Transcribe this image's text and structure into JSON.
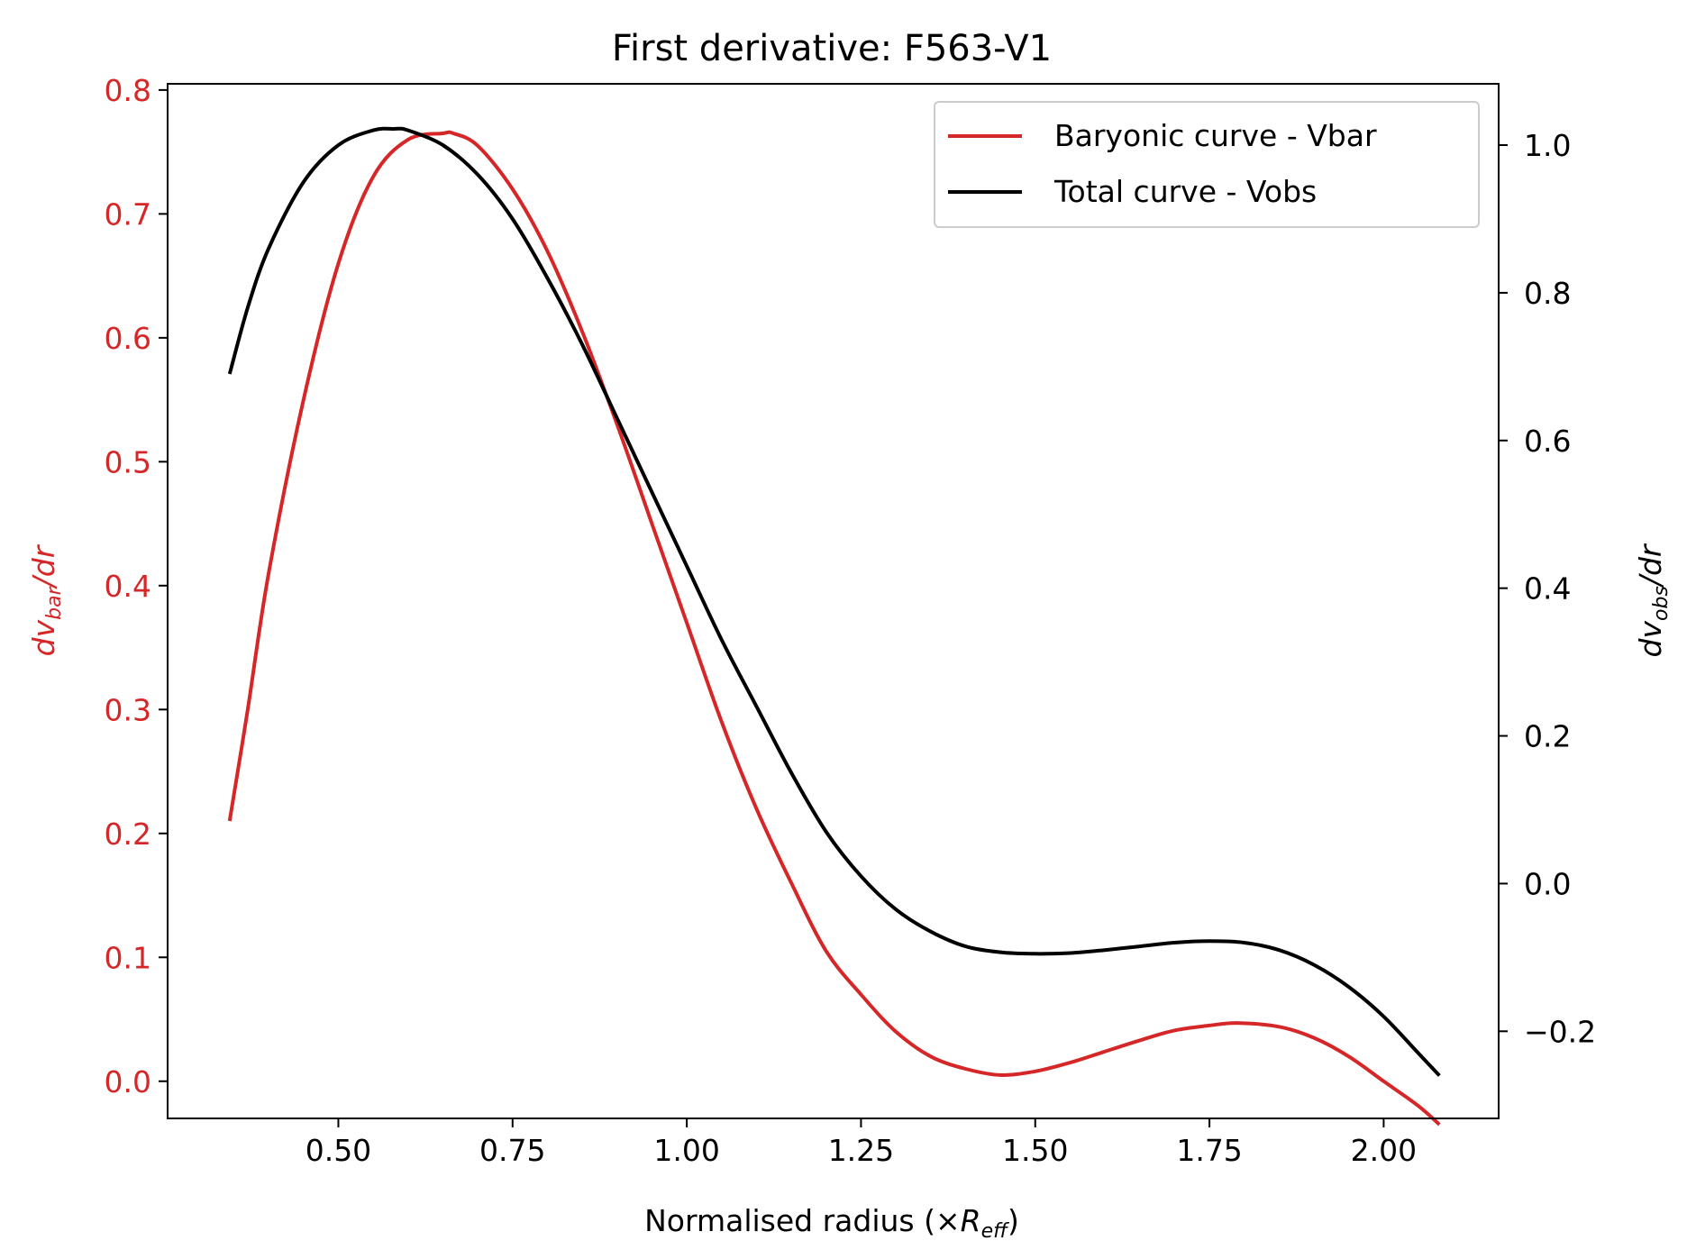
{
  "chart_data": {
    "type": "line",
    "title": "First derivative: F563-V1",
    "xlabel": {
      "main": "Normalised radius (×",
      "var": "R",
      "sub": "eff",
      "close": ")"
    },
    "ylabel_left": {
      "pre": "dv",
      "sub": "bar",
      "post": "/dr",
      "color": "#d62728"
    },
    "ylabel_right": {
      "pre": "dv",
      "sub": "obs",
      "post": "/dr",
      "color": "#000000"
    },
    "xlim": [
      0.255,
      2.165
    ],
    "ylim_left": [
      -0.03,
      0.805
    ],
    "ylim_right": [
      -0.318,
      1.083
    ],
    "x_ticks": [
      0.5,
      0.75,
      1.0,
      1.25,
      1.5,
      1.75,
      2.0
    ],
    "x_tick_labels": [
      "0.50",
      "0.75",
      "1.00",
      "1.25",
      "1.50",
      "1.75",
      "2.00"
    ],
    "y_left_ticks": [
      0.0,
      0.1,
      0.2,
      0.3,
      0.4,
      0.5,
      0.6,
      0.7,
      0.8
    ],
    "y_left_tick_labels": [
      "0.0",
      "0.1",
      "0.2",
      "0.3",
      "0.4",
      "0.5",
      "0.6",
      "0.7",
      "0.8"
    ],
    "y_right_ticks": [
      -0.2,
      0.0,
      0.2,
      0.4,
      0.6,
      0.8,
      1.0
    ],
    "y_right_tick_labels": [
      "−0.2",
      "0.0",
      "0.2",
      "0.4",
      "0.6",
      "0.8",
      "1.0"
    ],
    "grid": false,
    "legend_position": "upper right",
    "series": [
      {
        "name": "Baryonic curve - Vbar",
        "axis": "left",
        "color": "#d62728",
        "x": [
          0.344,
          0.37,
          0.4,
          0.45,
          0.5,
          0.55,
          0.6,
          0.65,
          0.665,
          0.7,
          0.75,
          0.8,
          0.85,
          0.9,
          0.95,
          1.0,
          1.05,
          1.1,
          1.15,
          1.2,
          1.25,
          1.3,
          1.35,
          1.4,
          1.45,
          1.5,
          1.55,
          1.6,
          1.65,
          1.7,
          1.75,
          1.79,
          1.85,
          1.9,
          1.95,
          2.0,
          2.05,
          2.08
        ],
        "y": [
          0.21,
          0.3,
          0.41,
          0.55,
          0.66,
          0.73,
          0.76,
          0.765,
          0.765,
          0.755,
          0.72,
          0.67,
          0.605,
          0.53,
          0.45,
          0.37,
          0.29,
          0.22,
          0.16,
          0.105,
          0.07,
          0.04,
          0.02,
          0.01,
          0.005,
          0.008,
          0.015,
          0.024,
          0.033,
          0.041,
          0.045,
          0.047,
          0.044,
          0.035,
          0.02,
          0.0,
          -0.02,
          -0.035
        ]
      },
      {
        "name": "Total curve - Vobs",
        "axis": "right",
        "color": "#000000",
        "x": [
          0.344,
          0.37,
          0.4,
          0.45,
          0.5,
          0.55,
          0.58,
          0.6,
          0.65,
          0.7,
          0.75,
          0.8,
          0.85,
          0.9,
          0.95,
          1.0,
          1.05,
          1.1,
          1.15,
          1.2,
          1.25,
          1.3,
          1.35,
          1.4,
          1.45,
          1.5,
          1.55,
          1.6,
          1.65,
          1.7,
          1.75,
          1.8,
          1.85,
          1.9,
          1.95,
          2.0,
          2.05,
          2.08
        ],
        "y": [
          0.69,
          0.78,
          0.86,
          0.95,
          1.0,
          1.02,
          1.022,
          1.02,
          1.0,
          0.96,
          0.9,
          0.82,
          0.73,
          0.63,
          0.53,
          0.43,
          0.33,
          0.24,
          0.15,
          0.07,
          0.01,
          -0.035,
          -0.065,
          -0.085,
          -0.093,
          -0.095,
          -0.094,
          -0.09,
          -0.085,
          -0.08,
          -0.078,
          -0.08,
          -0.09,
          -0.11,
          -0.14,
          -0.18,
          -0.23,
          -0.26
        ]
      }
    ]
  }
}
